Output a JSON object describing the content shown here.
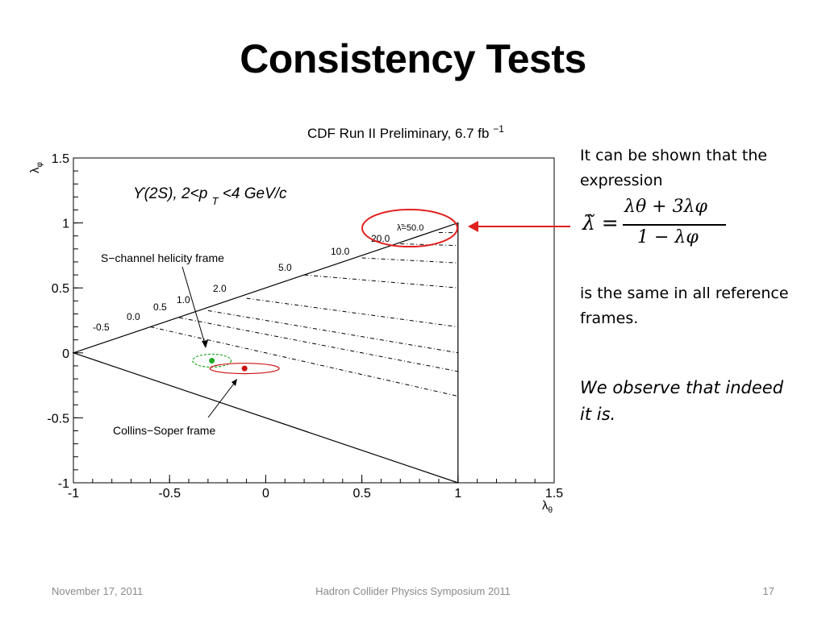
{
  "slide": {
    "title": "Consistency Tests",
    "text_intro": "It can be shown that the expression",
    "formula_lhs": "λ̃ =",
    "formula_numerator": "λθ + 3λφ",
    "formula_denominator": "1 − λφ",
    "text_frames": "is the same in all reference frames.",
    "text_observe": "We observe that indeed it is."
  },
  "footer": {
    "date": "November 17, 2011",
    "conference": "Hadron Collider Physics Symposium  2011",
    "page": "17"
  },
  "figure": {
    "header": "CDF Run II Preliminary, 6.7 fb",
    "header_sup": "−1",
    "sample_label": "ϒ(2S), 2<p",
    "sample_sub": "T",
    "sample_tail": "<4 GeV/c",
    "xlabel": "λ",
    "xlabel_sub": "θ",
    "ylabel": "λ",
    "ylabel_sub": "φ",
    "annotation_helicity": "S−channel helicity frame",
    "annotation_cs": "Collins−Soper frame",
    "highlight_color": "#e02020",
    "helicity_color": "#22aa22",
    "cs_color": "#cc1111"
  },
  "chart_data": {
    "type": "scatter",
    "xlim": [
      -1,
      1.5
    ],
    "ylim": [
      -1,
      1.5
    ],
    "x_ticks": [
      -1,
      -0.5,
      0,
      0.5,
      1,
      1.5
    ],
    "y_ticks": [
      -1,
      -0.5,
      0,
      0.5,
      1,
      1.5
    ],
    "x_tick_labels": [
      "-1",
      "-0.5",
      "0",
      "0.5",
      "1",
      "1.5"
    ],
    "y_tick_labels": [
      "-1",
      "-0.5",
      "0",
      "0.5",
      "1",
      "1.5"
    ],
    "allowed_region": [
      [
        -1,
        0
      ],
      [
        1,
        1
      ],
      [
        1,
        -1
      ]
    ],
    "contours": [
      {
        "label": "-0.5",
        "value": -0.5
      },
      {
        "label": "0.0",
        "value": 0.0
      },
      {
        "label": "0.5",
        "value": 0.5
      },
      {
        "label": "1.0",
        "value": 1.0
      },
      {
        "label": "2.0",
        "value": 2.0
      },
      {
        "label": "5.0",
        "value": 5.0
      },
      {
        "label": "10.0",
        "value": 10.0
      },
      {
        "label": "20.0",
        "value": 20.0
      },
      {
        "label": "λ̃=50.0",
        "value": 50.0
      }
    ],
    "series": [
      {
        "name": "S−channel helicity frame",
        "x": [
          -0.28
        ],
        "y": [
          -0.06
        ],
        "ellipse_rx": 0.1,
        "ellipse_ry": 0.05
      },
      {
        "name": "Collins−Soper frame",
        "x": [
          -0.11
        ],
        "y": [
          -0.12
        ],
        "ellipse_rx": 0.18,
        "ellipse_ry": 0.04
      }
    ],
    "grid": false
  }
}
